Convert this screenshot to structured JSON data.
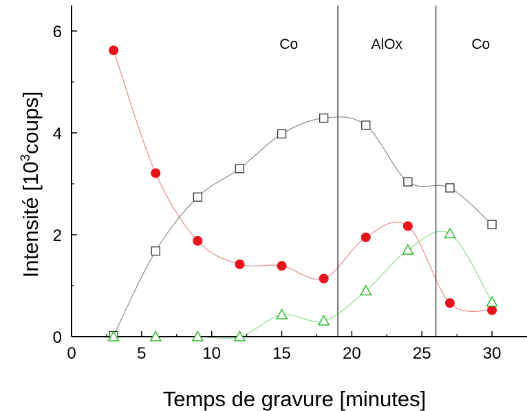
{
  "chart_data": {
    "type": "scatter",
    "xlabel": "Temps de gravure [minutes]",
    "ylabel_prefix": "Intensité [10",
    "ylabel_sup": "3",
    "ylabel_suffix": "coups]",
    "xlim": [
      0,
      32.5
    ],
    "ylim": [
      0,
      6.5
    ],
    "xticks": [
      0,
      5,
      10,
      15,
      20,
      25,
      30
    ],
    "yticks": [
      0,
      2,
      4,
      6
    ],
    "grid": false,
    "legend": "none",
    "series": [
      {
        "marker": "filled-circle",
        "color": "#e8141c",
        "line_color": "#e88a8a",
        "x": [
          3,
          6,
          9,
          12,
          15,
          18,
          21,
          24,
          27,
          30
        ],
        "y": [
          5.62,
          3.21,
          1.88,
          1.42,
          1.39,
          1.14,
          1.95,
          2.17,
          0.66,
          0.52
        ]
      },
      {
        "marker": "open-square",
        "color": "#333333",
        "line_color": "#8a8a8a",
        "x": [
          3,
          6,
          9,
          12,
          15,
          18,
          21,
          24,
          27,
          30
        ],
        "y": [
          0.02,
          1.68,
          2.74,
          3.3,
          3.98,
          4.29,
          4.15,
          3.04,
          2.92,
          2.2
        ]
      },
      {
        "marker": "open-triangle",
        "color": "#2db82d",
        "line_color": "#8fdc8f",
        "x": [
          3,
          6,
          9,
          12,
          15,
          18,
          21,
          24,
          27,
          30
        ],
        "y": [
          0.0,
          0.0,
          0.0,
          0.0,
          0.43,
          0.31,
          0.9,
          1.7,
          2.02,
          0.68
        ]
      }
    ],
    "vlines": [
      19,
      26
    ],
    "annotations": [
      {
        "text": "Co",
        "x": 15.5,
        "y": 5.65
      },
      {
        "text": "AlOx",
        "x": 22.5,
        "y": 5.65
      },
      {
        "text": "Co",
        "x": 29.2,
        "y": 5.65
      }
    ]
  }
}
